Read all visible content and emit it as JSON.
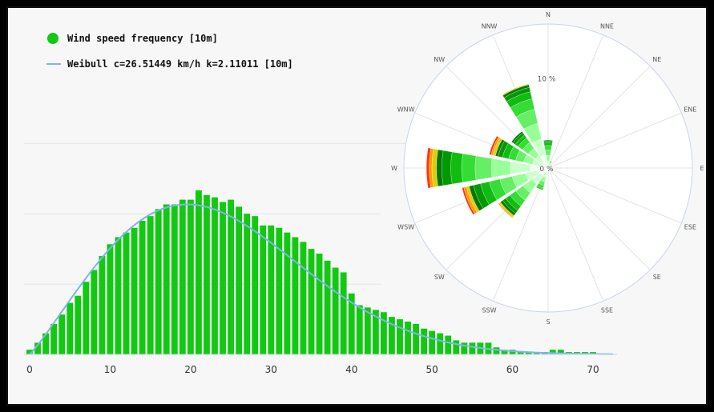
{
  "chart_data": [
    {
      "type": "bar",
      "title": "",
      "xlabel": "",
      "ylabel": "",
      "xlim": [
        0,
        73
      ],
      "x_ticks": [
        "0",
        "10",
        "20",
        "30",
        "40",
        "50",
        "60",
        "70"
      ],
      "ylim": [
        0,
        1
      ],
      "grid": true,
      "legend_position": "top-left",
      "series": [
        {
          "name": "Wind speed frequency [10m]",
          "color": "#11c911",
          "x": [
            0,
            1,
            2,
            3,
            4,
            5,
            6,
            7,
            8,
            9,
            10,
            11,
            12,
            13,
            14,
            15,
            16,
            17,
            18,
            19,
            20,
            21,
            22,
            23,
            24,
            25,
            26,
            27,
            28,
            29,
            30,
            31,
            32,
            33,
            34,
            35,
            36,
            37,
            38,
            39,
            40,
            41,
            42,
            43,
            44,
            45,
            46,
            47,
            48,
            49,
            50,
            51,
            52,
            53,
            54,
            55,
            56,
            57,
            58,
            59,
            60,
            61,
            62,
            63,
            64,
            65,
            66,
            67,
            68,
            69,
            70
          ],
          "values": [
            0.02,
            0.05,
            0.09,
            0.13,
            0.17,
            0.22,
            0.25,
            0.31,
            0.36,
            0.42,
            0.47,
            0.5,
            0.52,
            0.54,
            0.57,
            0.59,
            0.62,
            0.64,
            0.64,
            0.66,
            0.66,
            0.7,
            0.68,
            0.67,
            0.65,
            0.66,
            0.63,
            0.6,
            0.59,
            0.55,
            0.55,
            0.54,
            0.52,
            0.5,
            0.48,
            0.45,
            0.43,
            0.4,
            0.37,
            0.35,
            0.26,
            0.21,
            0.2,
            0.19,
            0.18,
            0.16,
            0.15,
            0.14,
            0.13,
            0.11,
            0.1,
            0.09,
            0.08,
            0.06,
            0.05,
            0.05,
            0.05,
            0.05,
            0.03,
            0.02,
            0.02,
            0.01,
            0.01,
            0.01,
            0.01,
            0.02,
            0.02,
            0.01,
            0.01,
            0.01,
            0.01
          ]
        },
        {
          "name": "Weibull c=26.51449 km/h k=2.11011 [10m]",
          "type": "line",
          "color": "#7cb5ec",
          "weibull_c": 26.51449,
          "weibull_k": 2.11011
        }
      ]
    },
    {
      "type": "polar-stacked-bar",
      "title": "",
      "directions": [
        "N",
        "NNE",
        "NE",
        "ENE",
        "E",
        "ESE",
        "SE",
        "SSE",
        "S",
        "SSW",
        "SW",
        "WSW",
        "W",
        "WNW",
        "NW",
        "NNW"
      ],
      "radial_labels": [
        "0 %",
        "10 %"
      ],
      "rmax_percent": 16,
      "speed_bin_colors": [
        "#f0fff0",
        "#ccffcc",
        "#99ff99",
        "#66ee66",
        "#33dd33",
        "#11bb11",
        "#009900",
        "#007a00",
        "#e6cc00",
        "#ff9900",
        "#ff3300"
      ],
      "values_percent": [
        [
          0.4,
          0.4,
          0.6,
          0.6,
          0.5,
          0.3,
          0.2,
          0.1,
          0.0,
          0.0,
          0.0
        ],
        [
          0.2,
          0.2,
          0.2,
          0.1,
          0.1,
          0.0,
          0.0,
          0.0,
          0.0,
          0.0,
          0.0
        ],
        [
          0.1,
          0.1,
          0.1,
          0.1,
          0.0,
          0.0,
          0.0,
          0.0,
          0.0,
          0.0,
          0.0
        ],
        [
          0.1,
          0.1,
          0.0,
          0.0,
          0.0,
          0.0,
          0.0,
          0.0,
          0.0,
          0.0,
          0.0
        ],
        [
          0.1,
          0.0,
          0.0,
          0.0,
          0.0,
          0.0,
          0.0,
          0.0,
          0.0,
          0.0,
          0.0
        ],
        [
          0.1,
          0.0,
          0.0,
          0.0,
          0.0,
          0.0,
          0.0,
          0.0,
          0.0,
          0.0,
          0.0
        ],
        [
          0.1,
          0.0,
          0.0,
          0.0,
          0.0,
          0.0,
          0.0,
          0.0,
          0.0,
          0.0,
          0.0
        ],
        [
          0.1,
          0.1,
          0.0,
          0.0,
          0.0,
          0.0,
          0.0,
          0.0,
          0.0,
          0.0,
          0.0
        ],
        [
          0.2,
          0.1,
          0.1,
          0.0,
          0.0,
          0.0,
          0.0,
          0.0,
          0.0,
          0.0,
          0.0
        ],
        [
          0.5,
          0.6,
          0.5,
          0.4,
          0.3,
          0.1,
          0.1,
          0.0,
          0.0,
          0.0,
          0.0
        ],
        [
          1.0,
          1.2,
          1.2,
          1.0,
          0.8,
          0.6,
          0.4,
          0.3,
          0.2,
          0.1,
          0.0
        ],
        [
          1.2,
          1.4,
          1.5,
          1.4,
          1.2,
          1.0,
          0.8,
          0.5,
          0.3,
          0.3,
          0.2
        ],
        [
          2.0,
          2.2,
          2.1,
          1.8,
          1.5,
          1.2,
          1.0,
          0.6,
          0.5,
          0.3,
          0.3
        ],
        [
          0.8,
          1.0,
          1.0,
          0.9,
          0.8,
          0.7,
          0.5,
          0.3,
          0.3,
          0.2,
          0.2
        ],
        [
          0.8,
          0.9,
          1.0,
          0.8,
          0.6,
          0.4,
          0.3,
          0.2,
          0.0,
          0.0,
          0.0
        ],
        [
          1.5,
          1.8,
          1.8,
          1.6,
          1.2,
          0.8,
          0.5,
          0.3,
          0.1,
          0.0,
          0.0
        ]
      ]
    }
  ]
}
